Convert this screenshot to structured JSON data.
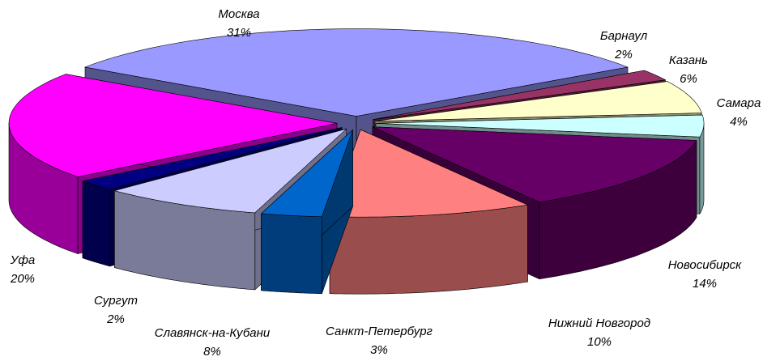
{
  "chart_data": {
    "type": "pie",
    "categories": [
      "Москва",
      "Барнаул",
      "Казань",
      "Самара",
      "Новосибирск",
      "Нижний Новгород",
      "Санкт-Петербург",
      "Славянск-на-Кубани",
      "Сургут",
      "Уфа"
    ],
    "values": [
      31,
      2,
      6,
      4,
      14,
      10,
      3,
      8,
      2,
      20
    ],
    "value_labels": [
      "31%",
      "2%",
      "6%",
      "4%",
      "14%",
      "10%",
      "3%",
      "8%",
      "2%",
      "20%"
    ],
    "colors": [
      "#9999ff",
      "#993366",
      "#ffffcc",
      "#ccffff",
      "#660066",
      "#ff8080",
      "#0066cc",
      "#ccccff",
      "#000080",
      "#ff00ff"
    ]
  }
}
